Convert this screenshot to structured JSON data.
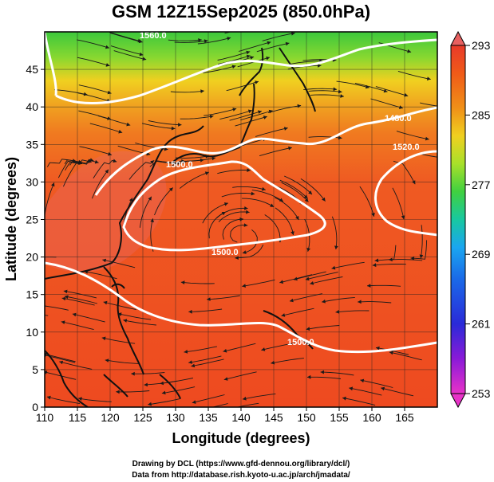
{
  "title": "GSM 12Z15Sep2025 (850.0hPa)",
  "x_axis": {
    "label": "Longitude (degrees)",
    "ticks": [
      "110",
      "115",
      "120",
      "125",
      "130",
      "135",
      "140",
      "145",
      "150",
      "155",
      "160",
      "165"
    ],
    "range": [
      110,
      170
    ]
  },
  "y_axis": {
    "label": "Latitude (degrees)",
    "ticks": [
      "0",
      "5",
      "10",
      "15",
      "20",
      "25",
      "30",
      "35",
      "40",
      "45"
    ],
    "range": [
      0,
      50
    ]
  },
  "colorbar": {
    "ticks": [
      "253",
      "261",
      "269",
      "277",
      "285",
      "293"
    ],
    "range": [
      253,
      293
    ],
    "colors": [
      "#e832c8",
      "#5a1fd0",
      "#1a3ce8",
      "#1aa6f0",
      "#18c89a",
      "#4cd230",
      "#a8e02a",
      "#f0d020",
      "#f09018",
      "#f05a18",
      "#e83a2a",
      "#e86060"
    ]
  },
  "contours": [
    {
      "label": "1560.0"
    },
    {
      "label": "1500.0"
    },
    {
      "label": "1500.0"
    },
    {
      "label": "1480.0"
    },
    {
      "label": "1520.0"
    },
    {
      "label": "1500.0"
    }
  ],
  "credits": {
    "line1": "Drawing by DCL (https://www.gfd-dennou.org/library/dcl/)",
    "line2": "Data from http://database.rish.kyoto-u.ac.jp/arch/jmadata/"
  }
}
